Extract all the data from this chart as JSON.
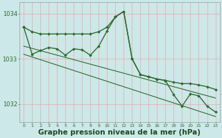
{
  "hours": [
    0,
    1,
    2,
    3,
    4,
    5,
    6,
    7,
    8,
    9,
    10,
    11,
    12,
    13,
    14,
    15,
    16,
    17,
    18,
    19,
    20,
    21,
    22,
    23
  ],
  "smooth_line": [
    1033.7,
    1033.6,
    1033.55,
    1033.55,
    1033.55,
    1033.55,
    1033.55,
    1033.55,
    1033.55,
    1033.6,
    1033.7,
    1033.93,
    1034.05,
    1033.0,
    1032.65,
    1032.6,
    1032.55,
    1032.52,
    1032.48,
    1032.45,
    1032.45,
    1032.42,
    1032.38,
    1032.32
  ],
  "jagged_line": [
    1033.7,
    1033.1,
    1033.18,
    1033.25,
    1033.22,
    1033.08,
    1033.22,
    1033.2,
    1033.08,
    1033.28,
    1033.62,
    1033.93,
    1034.05,
    1033.0,
    1032.65,
    1032.6,
    1032.55,
    1032.52,
    1032.2,
    1031.95,
    1032.22,
    1032.18,
    1031.95,
    1031.82
  ],
  "trend_line1": [
    1033.28,
    1033.23,
    1033.18,
    1033.13,
    1033.08,
    1033.03,
    1032.98,
    1032.93,
    1032.88,
    1032.83,
    1032.78,
    1032.73,
    1032.68,
    1032.63,
    1032.58,
    1032.53,
    1032.48,
    1032.43,
    1032.38,
    1032.33,
    1032.28,
    1032.23,
    1032.18,
    1032.13
  ],
  "trend_line2": [
    1033.1,
    1033.04,
    1032.98,
    1032.92,
    1032.86,
    1032.8,
    1032.74,
    1032.68,
    1032.62,
    1032.56,
    1032.5,
    1032.44,
    1032.38,
    1032.32,
    1032.26,
    1032.2,
    1032.14,
    1032.08,
    1032.02,
    1031.96,
    1031.9,
    1031.84,
    1031.78,
    1031.72
  ],
  "line_color": "#2d6a2d",
  "bg_color": "#cce8e8",
  "grid_color_h": "#e8b0b0",
  "grid_color_v": "#e8b0b0",
  "ylim": [
    1031.6,
    1034.25
  ],
  "yticks": [
    1032,
    1033,
    1034
  ],
  "xticks": [
    0,
    1,
    2,
    3,
    4,
    5,
    6,
    7,
    8,
    9,
    10,
    11,
    12,
    13,
    14,
    15,
    16,
    17,
    18,
    19,
    20,
    21,
    22,
    23
  ],
  "xlabel": "Graphe pression niveau de la mer (hPa)",
  "xlabel_color": "#1a4a1a",
  "xlabel_fontsize": 7.5
}
